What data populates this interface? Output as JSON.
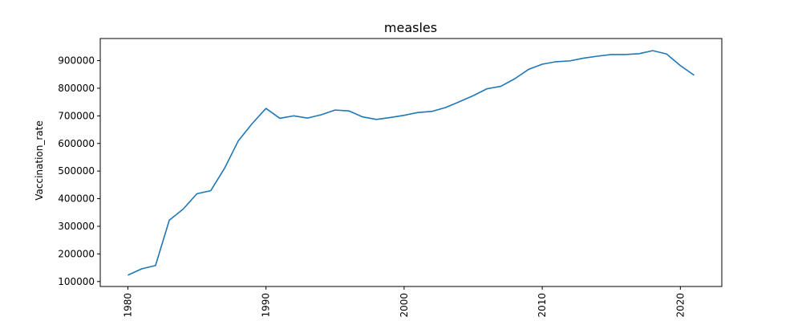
{
  "chart_data": {
    "type": "line",
    "title": "measles",
    "xlabel": "",
    "ylabel": "Vaccination_rate",
    "xlim": [
      1978,
      2023
    ],
    "ylim": [
      82000,
      980000
    ],
    "xticks": [
      1980,
      1990,
      2000,
      2010,
      2020
    ],
    "yticks": [
      100000,
      200000,
      300000,
      400000,
      500000,
      600000,
      700000,
      800000,
      900000
    ],
    "grid": false,
    "series": [
      {
        "color": "#1f77b4",
        "x": [
          1980,
          1981,
          1982,
          1983,
          1984,
          1985,
          1986,
          1987,
          1988,
          1989,
          1990,
          1991,
          1992,
          1993,
          1994,
          1995,
          1996,
          1997,
          1998,
          1999,
          2000,
          2001,
          2002,
          2003,
          2004,
          2005,
          2006,
          2007,
          2008,
          2009,
          2010,
          2011,
          2012,
          2013,
          2014,
          2015,
          2016,
          2017,
          2018,
          2019,
          2020,
          2021
        ],
        "y": [
          123000,
          146000,
          158000,
          322000,
          362000,
          418000,
          429000,
          510000,
          610000,
          672000,
          727000,
          691000,
          700000,
          692000,
          704000,
          721000,
          718000,
          696000,
          687000,
          694000,
          702000,
          712000,
          716000,
          730000,
          751000,
          773000,
          798000,
          807000,
          834000,
          868000,
          887000,
          896000,
          899000,
          909000,
          916000,
          922000,
          922000,
          925000,
          936000,
          924000,
          882000,
          847000
        ]
      }
    ]
  }
}
